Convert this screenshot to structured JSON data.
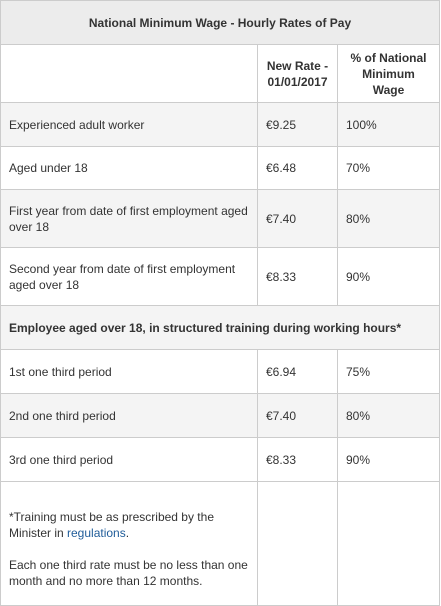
{
  "table": {
    "title": "National Minimum Wage - Hourly Rates of Pay",
    "headers": [
      "",
      "New Rate - 01/01/2017",
      "% of National Minimum Wage"
    ],
    "rows": [
      {
        "label": "Experienced adult worker",
        "rate": "€9.25",
        "percent": "100%"
      },
      {
        "label": "Aged under 18",
        "rate": "€6.48",
        "percent": "70%"
      },
      {
        "label": "First year from date of first employment aged over 18",
        "rate": "€7.40",
        "percent": "80%"
      },
      {
        "label": "Second year from date of first employment aged over 18",
        "rate": "€8.33",
        "percent": "90%"
      }
    ],
    "section_title": "Employee aged over 18, in structured training during working hours*",
    "training_rows": [
      {
        "label": "1st one third period",
        "rate": "€6.94",
        "percent": "75%"
      },
      {
        "label": "2nd one third period",
        "rate": "€7.40",
        "percent": "80%"
      },
      {
        "label": "3rd one third period",
        "rate": "€8.33",
        "percent": "90%"
      }
    ],
    "notes": {
      "line1_prefix": "*Training must be as prescribed by the Minister in ",
      "line1_link": "regulations",
      "line1_suffix": ".",
      "line2": "Each one third rate must be no less than one month and no more than 12 months."
    }
  }
}
